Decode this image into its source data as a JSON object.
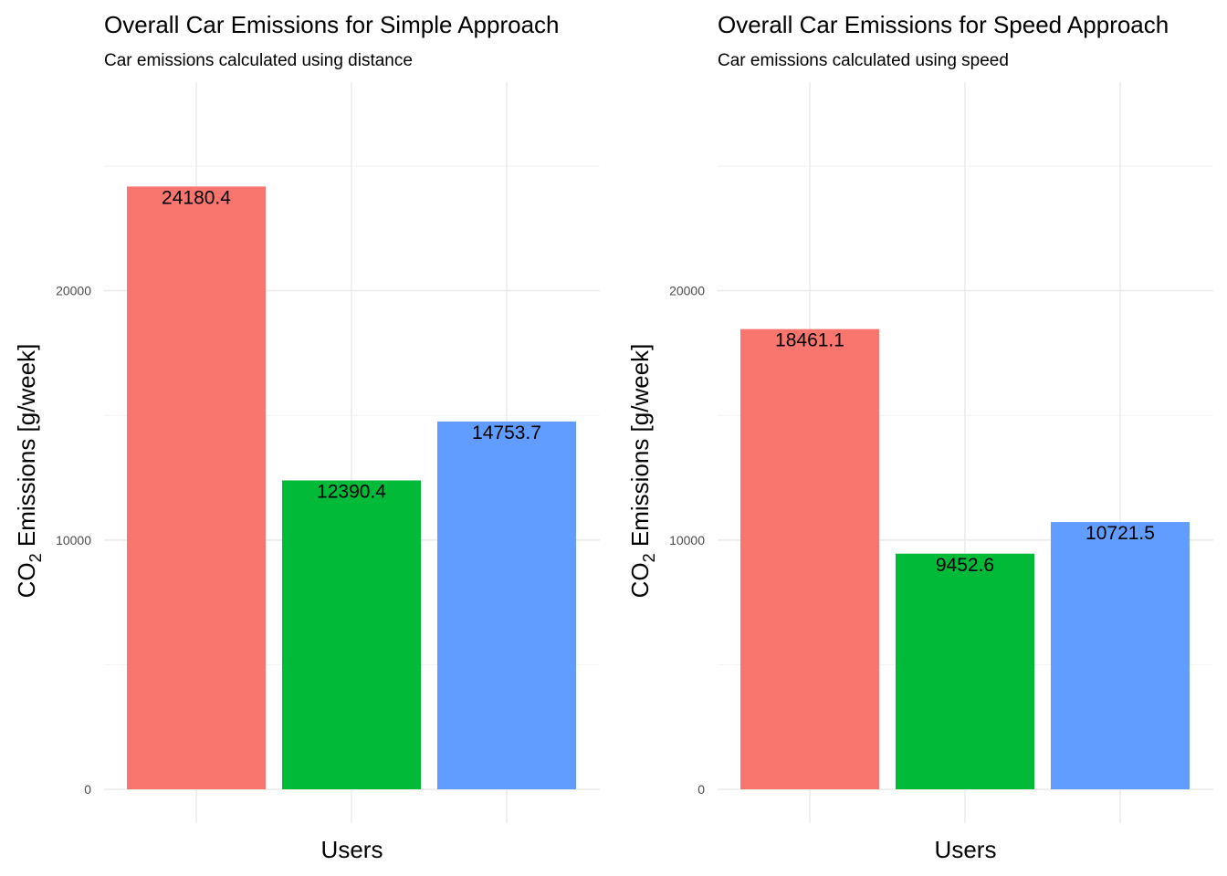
{
  "chart_data": [
    {
      "type": "bar",
      "title": "Overall Car Emissions for Simple Approach",
      "subtitle": "Car emissions calculated using distance",
      "xlabel": "Users",
      "ylabel": {
        "prefix": "CO",
        "subscript": "2",
        "suffix": " Emissions [g/week]"
      },
      "ylim": [
        0,
        28400
      ],
      "yticks": [
        0,
        10000,
        20000
      ],
      "ytick_labels": [
        "0",
        "10000",
        "20000"
      ],
      "grid": true,
      "legend": "none",
      "colors": [
        "#F8766D",
        "#00BA38",
        "#619CFF"
      ],
      "values": [
        24180.4,
        12390.4,
        14753.7
      ],
      "value_labels": [
        "24180.4",
        "12390.4",
        "14753.7"
      ]
    },
    {
      "type": "bar",
      "title": "Overall Car Emissions for Speed Approach",
      "subtitle": "Car emissions calculated using speed",
      "xlabel": "Users",
      "ylabel": {
        "prefix": "CO",
        "subscript": "2",
        "suffix": " Emissions [g/week]"
      },
      "ylim": [
        0,
        28400
      ],
      "yticks": [
        0,
        10000,
        20000
      ],
      "ytick_labels": [
        "0",
        "10000",
        "20000"
      ],
      "grid": true,
      "legend": "none",
      "colors": [
        "#F8766D",
        "#00BA38",
        "#619CFF"
      ],
      "values": [
        18461.1,
        9452.6,
        10721.5
      ],
      "value_labels": [
        "18461.1",
        "9452.6",
        "10721.5"
      ]
    }
  ]
}
